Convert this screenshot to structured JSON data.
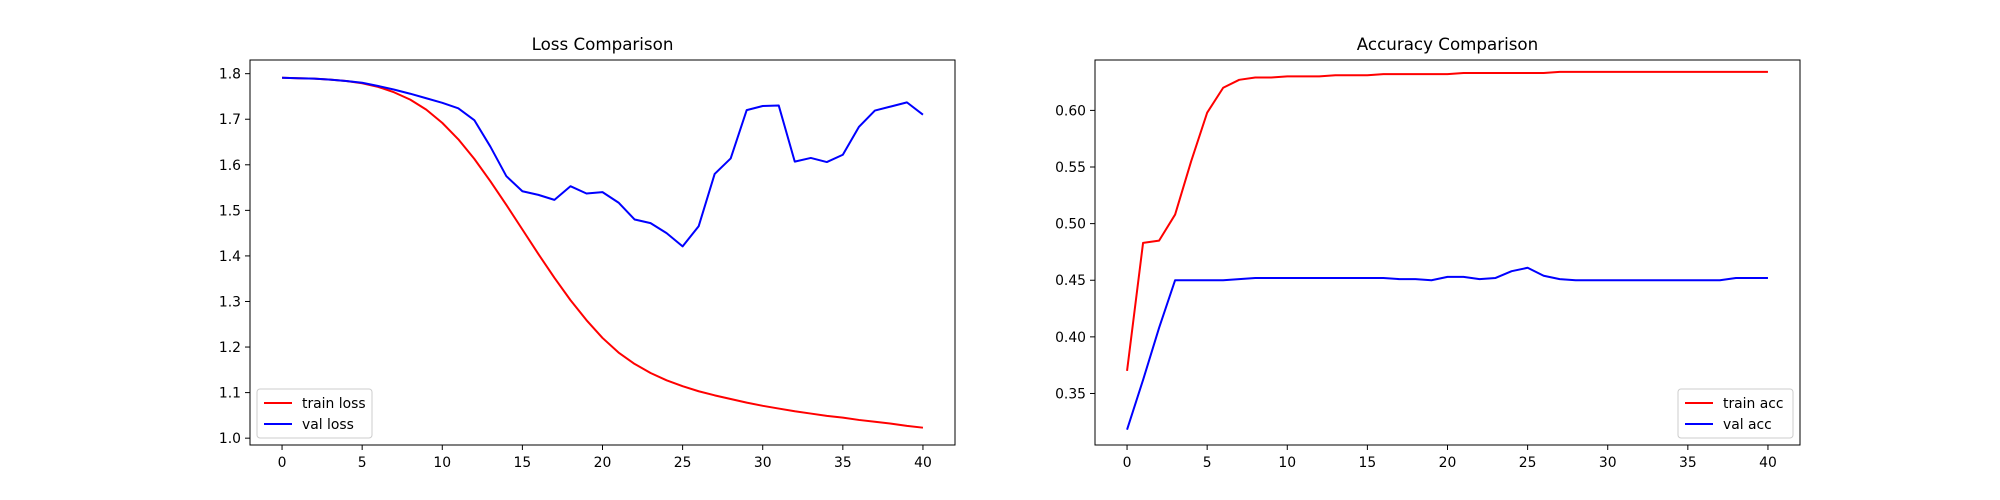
{
  "chart_data": [
    {
      "type": "line",
      "title": "Loss Comparison",
      "xlabel": "",
      "ylabel": "",
      "xlim": [
        -2,
        42
      ],
      "ylim": [
        0.985,
        1.83
      ],
      "xticks": [
        0,
        5,
        10,
        15,
        20,
        25,
        30,
        35,
        40
      ],
      "yticks": [
        1.0,
        1.1,
        1.2,
        1.3,
        1.4,
        1.5,
        1.6,
        1.7,
        1.8
      ],
      "ytick_decimals": 1,
      "grid": false,
      "legend_position": "lower-left",
      "x": [
        0,
        1,
        2,
        3,
        4,
        5,
        6,
        7,
        8,
        9,
        10,
        11,
        12,
        13,
        14,
        15,
        16,
        17,
        18,
        19,
        20,
        21,
        22,
        23,
        24,
        25,
        26,
        27,
        28,
        29,
        30,
        31,
        32,
        33,
        34,
        35,
        36,
        37,
        38,
        39,
        40
      ],
      "series": [
        {
          "name": "train loss",
          "color": "#ff0000",
          "values": [
            1.791,
            1.79,
            1.789,
            1.787,
            1.784,
            1.779,
            1.771,
            1.759,
            1.743,
            1.721,
            1.692,
            1.656,
            1.613,
            1.564,
            1.512,
            1.458,
            1.404,
            1.352,
            1.303,
            1.259,
            1.22,
            1.188,
            1.163,
            1.143,
            1.127,
            1.114,
            1.103,
            1.094,
            1.086,
            1.078,
            1.071,
            1.065,
            1.059,
            1.054,
            1.049,
            1.045,
            1.04,
            1.036,
            1.032,
            1.027,
            1.023
          ]
        },
        {
          "name": "val loss",
          "color": "#0000ff",
          "values": [
            1.791,
            1.79,
            1.789,
            1.787,
            1.784,
            1.78,
            1.773,
            1.765,
            1.756,
            1.746,
            1.736,
            1.724,
            1.698,
            1.64,
            1.575,
            1.542,
            1.534,
            1.523,
            1.553,
            1.537,
            1.54,
            1.517,
            1.48,
            1.472,
            1.45,
            1.421,
            1.465,
            1.58,
            1.614,
            1.72,
            1.729,
            1.73,
            1.607,
            1.615,
            1.606,
            1.622,
            1.683,
            1.719,
            1.728,
            1.737,
            1.71
          ]
        }
      ]
    },
    {
      "type": "line",
      "title": "Accuracy Comparison",
      "xlabel": "",
      "ylabel": "",
      "xlim": [
        -2,
        42
      ],
      "ylim": [
        0.3045,
        0.6445
      ],
      "xticks": [
        0,
        5,
        10,
        15,
        20,
        25,
        30,
        35,
        40
      ],
      "yticks": [
        0.35,
        0.4,
        0.45,
        0.5,
        0.55,
        0.6
      ],
      "ytick_decimals": 2,
      "grid": false,
      "legend_position": "lower-right",
      "x": [
        0,
        1,
        2,
        3,
        4,
        5,
        6,
        7,
        8,
        9,
        10,
        11,
        12,
        13,
        14,
        15,
        16,
        17,
        18,
        19,
        20,
        21,
        22,
        23,
        24,
        25,
        26,
        27,
        28,
        29,
        30,
        31,
        32,
        33,
        34,
        35,
        36,
        37,
        38,
        39,
        40
      ],
      "series": [
        {
          "name": "train acc",
          "color": "#ff0000",
          "values": [
            0.37,
            0.483,
            0.485,
            0.508,
            0.555,
            0.598,
            0.62,
            0.627,
            0.629,
            0.629,
            0.63,
            0.63,
            0.63,
            0.631,
            0.631,
            0.631,
            0.632,
            0.632,
            0.632,
            0.632,
            0.632,
            0.633,
            0.633,
            0.633,
            0.633,
            0.633,
            0.633,
            0.634,
            0.634,
            0.634,
            0.634,
            0.634,
            0.634,
            0.634,
            0.634,
            0.634,
            0.634,
            0.634,
            0.634,
            0.634,
            0.634
          ]
        },
        {
          "name": "val acc",
          "color": "#0000ff",
          "values": [
            0.318,
            0.362,
            0.408,
            0.45,
            0.45,
            0.45,
            0.45,
            0.451,
            0.452,
            0.452,
            0.452,
            0.452,
            0.452,
            0.452,
            0.452,
            0.452,
            0.452,
            0.451,
            0.451,
            0.45,
            0.453,
            0.453,
            0.451,
            0.452,
            0.458,
            0.461,
            0.454,
            0.451,
            0.45,
            0.45,
            0.45,
            0.45,
            0.45,
            0.45,
            0.45,
            0.45,
            0.45,
            0.45,
            0.452,
            0.452,
            0.452
          ]
        }
      ]
    }
  ]
}
